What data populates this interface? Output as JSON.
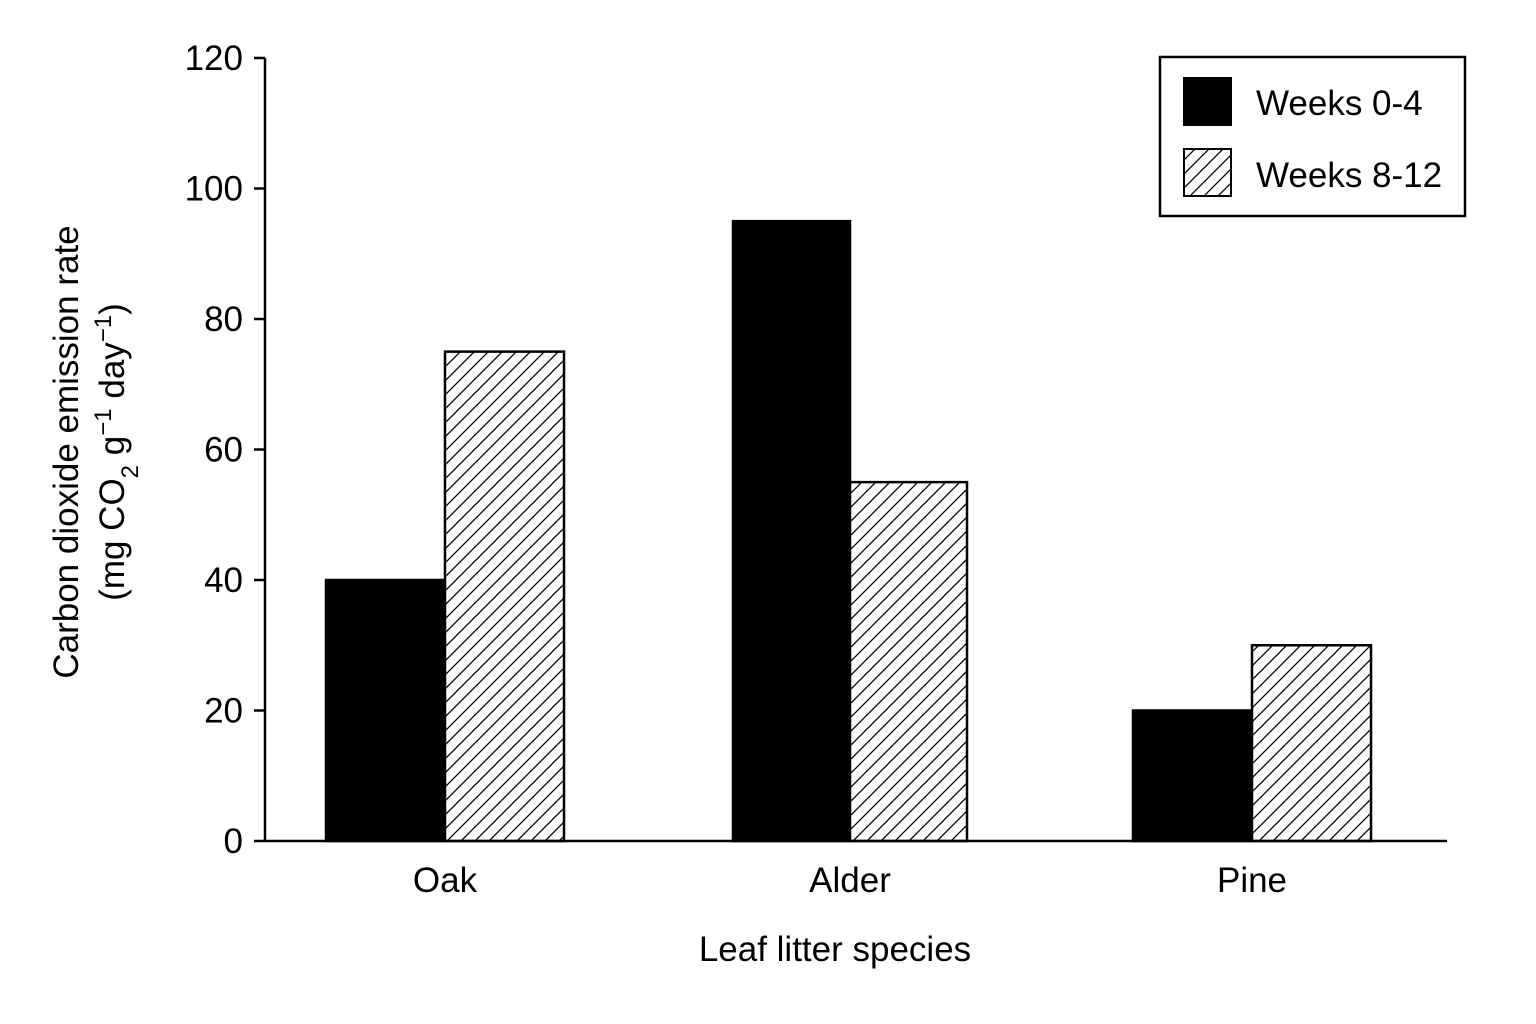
{
  "chart_data": {
    "type": "bar",
    "title": "",
    "xlabel": "Leaf litter species",
    "ylabel": {
      "line1": "Carbon dioxide emission rate",
      "line2_open": "(mg CO",
      "line2_sub": "2",
      "line2_mid1": " g",
      "line2_sup1": "−1",
      "line2_mid2": " day",
      "line2_sup2": "−1",
      "line2_close": ")"
    },
    "categories": [
      "Oak",
      "Alder",
      "Pine"
    ],
    "series": [
      {
        "name": "Weeks 0-4",
        "values": [
          40,
          95,
          20
        ],
        "fill": "solid",
        "color": "#000000"
      },
      {
        "name": "Weeks 8-12",
        "values": [
          75,
          55,
          30
        ],
        "fill": "hatched",
        "color": "#ffffff"
      }
    ],
    "ylim": [
      0,
      120
    ],
    "yticks": [
      0,
      20,
      40,
      60,
      80,
      100,
      120
    ],
    "grid": false,
    "legend_position": "top-right"
  }
}
